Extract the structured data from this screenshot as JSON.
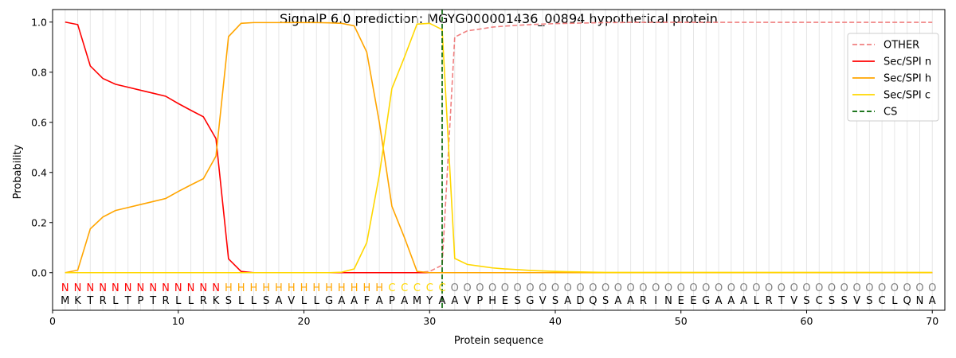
{
  "chart_data": {
    "type": "line",
    "title": "SignalP 6.0 prediction: MGYG000001436_00894 hypothetical protein",
    "xlabel": "Protein sequence",
    "ylabel": "Probability",
    "xlim": [
      0,
      71
    ],
    "ylim": [
      -0.15,
      1.05
    ],
    "x_ticks": [
      0,
      10,
      20,
      30,
      40,
      50,
      60,
      70
    ],
    "y_ticks": [
      0.0,
      0.2,
      0.4,
      0.6,
      0.8,
      1.0
    ],
    "grid": "vertical lines at each residue",
    "legend_position": "top-right",
    "sequence": "MKTRLTPTRLLRKSLLSAVLLGAAFAPAMYAAVPHESGVSADQSAARINEEGAAALRTVSCSSVSCLQNA",
    "labels": "NNNNNNNNNNNNNHHHHHHHHHHHHHCCCCCOOOOOOOOOOOOOOOOOOOOOOOOOOOOOOOOOOOOOOO",
    "label_colors": {
      "N": "#ff0000",
      "H": "#ffa500",
      "C": "#ffd700",
      "O": "#808080"
    },
    "cleavage_site": 31,
    "series": [
      {
        "name": "OTHER",
        "color": "#f08080",
        "style": "dashed",
        "values": [
          0,
          0,
          0,
          0,
          0,
          0,
          0,
          0,
          0,
          0,
          0,
          0,
          0,
          0,
          0,
          0,
          0,
          0,
          0,
          0,
          0,
          0,
          0,
          0,
          0,
          0,
          0,
          0,
          0,
          0.005,
          0.03,
          0.94,
          0.965,
          0.972,
          0.98,
          0.984,
          0.987,
          0.99,
          0.992,
          0.994,
          0.995,
          0.996,
          0.997,
          0.998,
          0.998,
          0.999,
          0.999,
          0.999,
          0.999,
          0.999,
          0.999,
          0.999,
          0.999,
          0.999,
          0.999,
          0.999,
          0.999,
          0.999,
          0.999,
          0.999,
          0.999,
          0.999,
          0.999,
          0.999,
          0.999,
          0.999,
          0.999,
          0.999,
          0.999,
          0.999
        ]
      },
      {
        "name": "Sec/SPI n",
        "color": "#ff0000",
        "style": "solid",
        "values": [
          1.0,
          0.99,
          0.825,
          0.775,
          0.752,
          0.74,
          0.728,
          0.716,
          0.704,
          0.675,
          0.648,
          0.622,
          0.535,
          0.055,
          0.005,
          0,
          0,
          0,
          0,
          0,
          0,
          0,
          0,
          0,
          0,
          0,
          0,
          0,
          0,
          0,
          0,
          0,
          0,
          0,
          0,
          0,
          0,
          0,
          0,
          0,
          0,
          0,
          0,
          0,
          0,
          0,
          0,
          0,
          0,
          0,
          0,
          0,
          0,
          0,
          0,
          0,
          0,
          0,
          0,
          0,
          0,
          0,
          0,
          0,
          0,
          0,
          0,
          0,
          0,
          0
        ]
      },
      {
        "name": "Sec/SPI h",
        "color": "#ffa500",
        "style": "solid",
        "values": [
          0.0,
          0.01,
          0.175,
          0.222,
          0.248,
          0.26,
          0.272,
          0.284,
          0.296,
          0.324,
          0.35,
          0.375,
          0.465,
          0.942,
          0.995,
          0.998,
          0.998,
          0.998,
          0.998,
          0.998,
          0.998,
          0.997,
          0.995,
          0.985,
          0.88,
          0.6,
          0.265,
          0.14,
          0.005,
          0,
          0,
          0,
          0,
          0,
          0,
          0,
          0,
          0,
          0,
          0,
          0,
          0,
          0,
          0,
          0,
          0,
          0,
          0,
          0,
          0,
          0,
          0,
          0,
          0,
          0,
          0,
          0,
          0,
          0,
          0,
          0,
          0,
          0,
          0,
          0,
          0,
          0,
          0,
          0,
          0
        ]
      },
      {
        "name": "Sec/SPI c",
        "color": "#ffd700",
        "style": "solid",
        "values": [
          0,
          0,
          0,
          0,
          0,
          0,
          0,
          0,
          0,
          0,
          0,
          0,
          0,
          0,
          0,
          0,
          0,
          0,
          0,
          0,
          0,
          0,
          0.002,
          0.015,
          0.12,
          0.39,
          0.735,
          0.86,
          0.992,
          0.995,
          0.97,
          0.057,
          0.033,
          0.026,
          0.019,
          0.015,
          0.012,
          0.009,
          0.007,
          0.005,
          0.004,
          0.003,
          0.002,
          0.001,
          0.001,
          0.001,
          0.001,
          0.001,
          0.001,
          0.001,
          0.001,
          0.001,
          0.001,
          0.001,
          0.001,
          0.001,
          0.001,
          0.001,
          0.001,
          0.001,
          0.001,
          0.001,
          0.001,
          0.001,
          0.001,
          0.001,
          0.001,
          0.001,
          0.001,
          0.001
        ]
      }
    ],
    "cs_legend": {
      "name": "CS",
      "color": "#006400",
      "style": "dashed"
    }
  }
}
